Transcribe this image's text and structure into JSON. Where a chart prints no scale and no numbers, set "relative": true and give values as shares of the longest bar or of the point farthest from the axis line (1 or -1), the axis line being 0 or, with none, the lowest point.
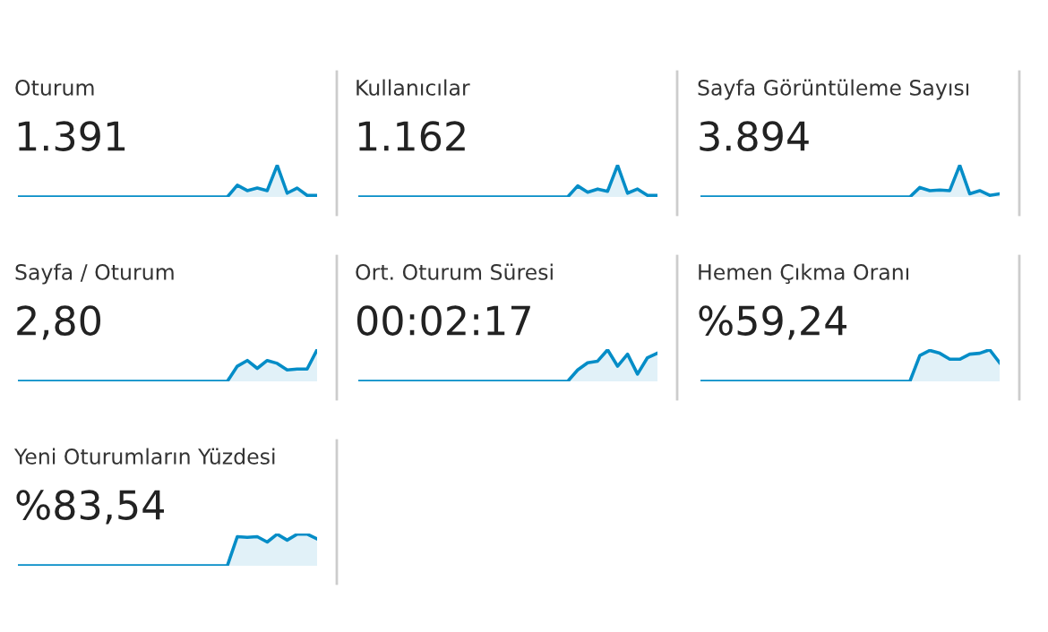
{
  "chart_data": [
    {
      "type": "area",
      "title": "Oturum",
      "subtitle": "1.391",
      "relative": true,
      "categories": [
        null,
        null,
        null,
        null,
        null,
        null,
        null,
        null,
        null,
        null,
        null,
        null,
        null,
        null,
        null,
        null,
        null,
        null,
        null,
        null,
        null,
        null,
        null,
        null,
        null,
        null,
        null,
        null,
        null,
        null,
        null
      ],
      "series": [
        {
          "color": "#058dc7",
          "values": [
            0,
            0,
            0,
            0,
            0,
            0,
            0,
            0,
            0,
            0,
            0,
            0,
            0,
            0,
            0,
            0,
            0,
            0,
            0,
            0,
            0,
            0,
            0.37,
            0.2,
            0.28,
            0.2,
            1.0,
            0.12,
            0.28,
            0.05,
            0.05
          ]
        }
      ]
    },
    {
      "type": "area",
      "title": "Kullanıcılar",
      "subtitle": "1.162",
      "relative": true,
      "categories": [
        null,
        null,
        null,
        null,
        null,
        null,
        null,
        null,
        null,
        null,
        null,
        null,
        null,
        null,
        null,
        null,
        null,
        null,
        null,
        null,
        null,
        null,
        null,
        null,
        null,
        null,
        null,
        null,
        null,
        null,
        null
      ],
      "series": [
        {
          "color": "#058dc7",
          "values": [
            0,
            0,
            0,
            0,
            0,
            0,
            0,
            0,
            0,
            0,
            0,
            0,
            0,
            0,
            0,
            0,
            0,
            0,
            0,
            0,
            0,
            0,
            0.35,
            0.15,
            0.25,
            0.18,
            1.0,
            0.12,
            0.25,
            0.05,
            0.05
          ]
        }
      ]
    },
    {
      "type": "area",
      "title": "Sayfa Görüntüleme Sayısı",
      "subtitle": "3.894",
      "relative": true,
      "categories": [
        null,
        null,
        null,
        null,
        null,
        null,
        null,
        null,
        null,
        null,
        null,
        null,
        null,
        null,
        null,
        null,
        null,
        null,
        null,
        null,
        null,
        null,
        null,
        null,
        null,
        null,
        null,
        null,
        null,
        null,
        null
      ],
      "series": [
        {
          "color": "#058dc7",
          "values": [
            0,
            0,
            0,
            0,
            0,
            0,
            0,
            0,
            0,
            0,
            0,
            0,
            0,
            0,
            0,
            0,
            0,
            0,
            0,
            0,
            0,
            0,
            0.3,
            0.2,
            0.22,
            0.2,
            1.0,
            0.1,
            0.2,
            0.05,
            0.1
          ]
        }
      ]
    },
    {
      "type": "area",
      "title": "Sayfa / Oturum",
      "subtitle": "2,80",
      "relative": true,
      "categories": [
        null,
        null,
        null,
        null,
        null,
        null,
        null,
        null,
        null,
        null,
        null,
        null,
        null,
        null,
        null,
        null,
        null,
        null,
        null,
        null,
        null,
        null,
        null,
        null,
        null,
        null,
        null,
        null,
        null,
        null,
        null
      ],
      "series": [
        {
          "color": "#058dc7",
          "values": [
            0,
            0,
            0,
            0,
            0,
            0,
            0,
            0,
            0,
            0,
            0,
            0,
            0,
            0,
            0,
            0,
            0,
            0,
            0,
            0,
            0,
            0,
            0.48,
            0.66,
            0.41,
            0.66,
            0.57,
            0.36,
            0.39,
            0.39,
            1.0
          ]
        }
      ]
    },
    {
      "type": "area",
      "title": "Ort. Oturum Süresi",
      "subtitle": "00:02:17",
      "relative": true,
      "categories": [
        null,
        null,
        null,
        null,
        null,
        null,
        null,
        null,
        null,
        null,
        null,
        null,
        null,
        null,
        null,
        null,
        null,
        null,
        null,
        null,
        null,
        null,
        null,
        null,
        null,
        null,
        null,
        null,
        null,
        null,
        null
      ],
      "series": [
        {
          "color": "#058dc7",
          "values": [
            0,
            0,
            0,
            0,
            0,
            0,
            0,
            0,
            0,
            0,
            0,
            0,
            0,
            0,
            0,
            0,
            0,
            0,
            0,
            0,
            0,
            0,
            0.36,
            0.59,
            0.64,
            1.0,
            0.48,
            0.86,
            0.23,
            0.75,
            0.89
          ]
        }
      ]
    },
    {
      "type": "area",
      "title": "Hemen Çıkma Oranı",
      "subtitle": "%59,24",
      "relative": true,
      "categories": [
        null,
        null,
        null,
        null,
        null,
        null,
        null,
        null,
        null,
        null,
        null,
        null,
        null,
        null,
        null,
        null,
        null,
        null,
        null,
        null,
        null,
        null,
        null,
        null,
        null,
        null,
        null,
        null,
        null,
        null,
        null
      ],
      "series": [
        {
          "color": "#058dc7",
          "values": [
            0,
            0,
            0,
            0,
            0,
            0,
            0,
            0,
            0,
            0,
            0,
            0,
            0,
            0,
            0,
            0,
            0,
            0,
            0,
            0,
            0,
            0,
            0.82,
            0.98,
            0.89,
            0.7,
            0.7,
            0.86,
            0.89,
            1.0,
            0.59
          ]
        }
      ]
    },
    {
      "type": "area",
      "title": "Yeni Oturumların Yüzdesi",
      "subtitle": "%83,54",
      "relative": true,
      "categories": [
        null,
        null,
        null,
        null,
        null,
        null,
        null,
        null,
        null,
        null,
        null,
        null,
        null,
        null,
        null,
        null,
        null,
        null,
        null,
        null,
        null,
        null,
        null,
        null,
        null,
        null,
        null,
        null,
        null,
        null,
        null
      ],
      "series": [
        {
          "color": "#058dc7",
          "values": [
            0,
            0,
            0,
            0,
            0,
            0,
            0,
            0,
            0,
            0,
            0,
            0,
            0,
            0,
            0,
            0,
            0,
            0,
            0,
            0,
            0,
            0,
            0.92,
            0.9,
            0.92,
            0.75,
            1.0,
            0.81,
            1.0,
            1.0,
            0.85
          ]
        }
      ]
    }
  ]
}
